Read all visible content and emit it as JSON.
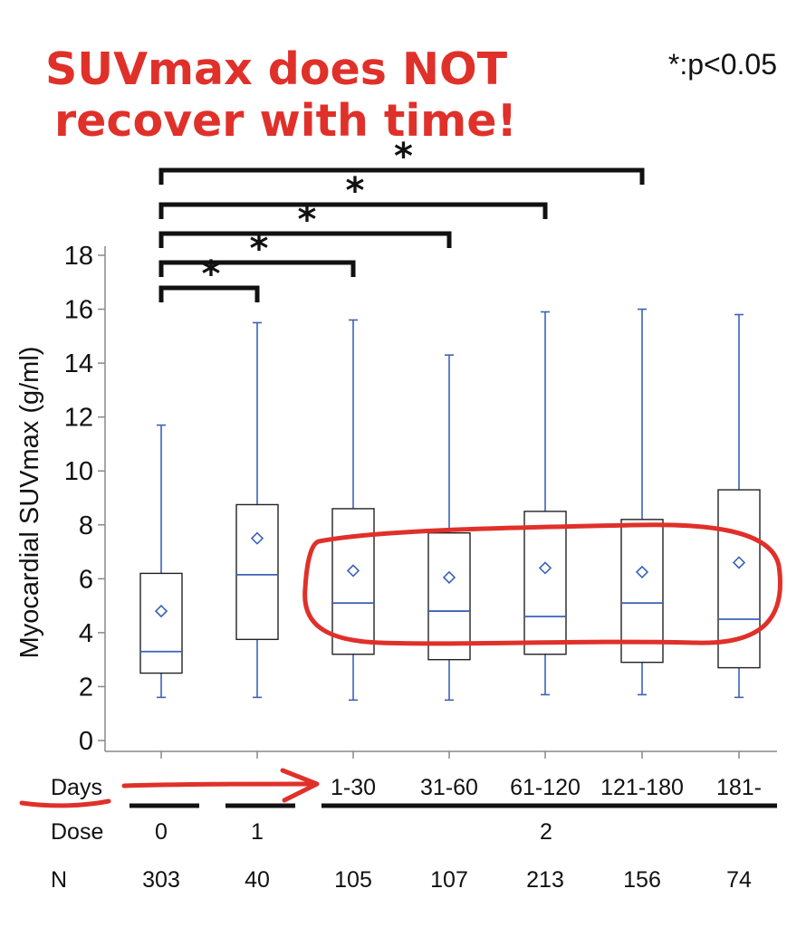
{
  "annotation": {
    "title_line1": "SUVmax does NOT",
    "title_line2": "recover with time!",
    "significance_note": "*:p<0.05",
    "highlight_color": "#e0302a"
  },
  "chart_data": {
    "type": "box",
    "title": "",
    "ylabel": "Myocardial SUVmax (g/ml)",
    "ylim": [
      0,
      18
    ],
    "yticks": [
      0,
      2,
      4,
      6,
      8,
      10,
      12,
      14,
      16,
      18
    ],
    "box_color": "#222222",
    "whisker_color": "#3a62b8",
    "groups": [
      {
        "days": "",
        "dose": "0",
        "n": "303",
        "min": 1.6,
        "q1": 2.5,
        "median": 3.3,
        "q3": 6.2,
        "max": 11.7,
        "mean": 4.8
      },
      {
        "days": "",
        "dose": "1",
        "n": "40",
        "min": 1.6,
        "q1": 3.75,
        "median": 6.15,
        "q3": 8.75,
        "max": 15.5,
        "mean": 7.5
      },
      {
        "days": "1-30",
        "dose": "2",
        "n": "105",
        "min": 1.5,
        "q1": 3.2,
        "median": 5.1,
        "q3": 8.6,
        "max": 15.6,
        "mean": 6.3
      },
      {
        "days": "31-60",
        "dose": "2",
        "n": "107",
        "min": 1.5,
        "q1": 3.0,
        "median": 4.8,
        "q3": 7.7,
        "max": 14.3,
        "mean": 6.05
      },
      {
        "days": "61-120",
        "dose": "2",
        "n": "213",
        "min": 1.7,
        "q1": 3.2,
        "median": 4.6,
        "q3": 8.5,
        "max": 15.9,
        "mean": 6.4
      },
      {
        "days": "121-180",
        "dose": "2",
        "n": "156",
        "min": 1.7,
        "q1": 2.9,
        "median": 5.1,
        "q3": 8.2,
        "max": 16.0,
        "mean": 6.25
      },
      {
        "days": "181-",
        "dose": "2",
        "n": "74",
        "min": 1.6,
        "q1": 2.7,
        "median": 4.5,
        "q3": 9.3,
        "max": 15.8,
        "mean": 6.6
      }
    ],
    "significance": [
      {
        "from": 0,
        "to": 1,
        "label": "*"
      },
      {
        "from": 0,
        "to": 2,
        "label": "*"
      },
      {
        "from": 0,
        "to": 3,
        "label": "*"
      },
      {
        "from": 0,
        "to": 4,
        "label": "*"
      },
      {
        "from": 0,
        "to": 5,
        "label": "*"
      }
    ],
    "rows": {
      "days_label": "Days",
      "dose_label": "Dose",
      "n_label": "N",
      "dose_groups": [
        {
          "label": "0",
          "from": 0,
          "to": 0
        },
        {
          "label": "1",
          "from": 1,
          "to": 1
        },
        {
          "label": "2",
          "from": 2,
          "to": 6
        }
      ]
    }
  }
}
